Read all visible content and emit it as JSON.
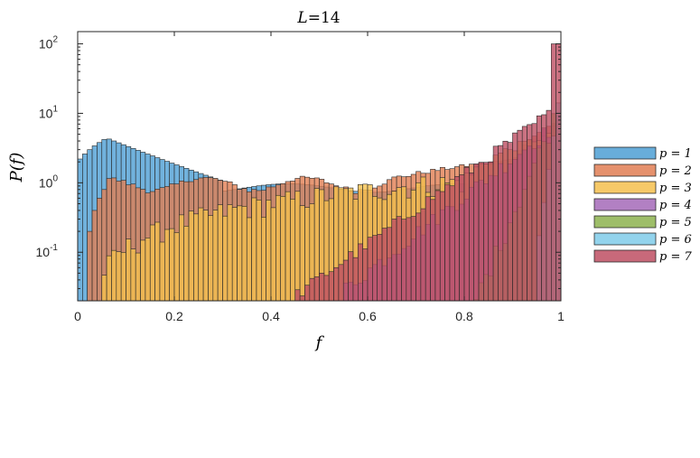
{
  "chart_data": {
    "type": "bar",
    "title_var": "L",
    "title_value": "=14",
    "xlabel": "f",
    "ylabel_var": "P(f)",
    "xlim": [
      0,
      1
    ],
    "ylim": [
      0.02,
      150
    ],
    "yscale": "log",
    "x_ticks": [
      "0",
      "0.2",
      "0.4",
      "0.6",
      "0.8",
      "1"
    ],
    "y_ticks": [
      {
        "base": "10",
        "exp": "-1",
        "value": 0.1
      },
      {
        "base": "10",
        "exp": "0",
        "value": 1
      },
      {
        "base": "10",
        "exp": "1",
        "value": 10
      },
      {
        "base": "10",
        "exp": "2",
        "value": 100
      }
    ],
    "grid": false,
    "legend_position": "right",
    "bin_width": 0.01,
    "series": [
      {
        "name": "p = 1",
        "color": "#4e9fd4",
        "kind": "p1"
      },
      {
        "name": "p = 2",
        "color": "#e17e53",
        "kind": "p2"
      },
      {
        "name": "p = 3",
        "color": "#f4c04e",
        "kind": "p3"
      },
      {
        "name": "p = 4",
        "color": "#a56ab8",
        "kind": "p4"
      },
      {
        "name": "p = 5",
        "color": "#8db34f",
        "kind": "p5"
      },
      {
        "name": "p = 6",
        "color": "#7fcbe9",
        "kind": "p6"
      },
      {
        "name": "p = 7",
        "color": "#be4f63",
        "kind": "p7"
      }
    ]
  }
}
